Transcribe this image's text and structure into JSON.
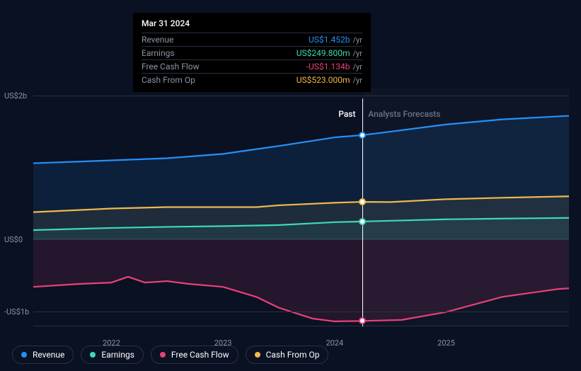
{
  "background_color": "#0a1122",
  "tooltip": {
    "date": "Mar 31 2024",
    "rows": [
      {
        "label": "Revenue",
        "value": "US$1.452b",
        "unit": "/yr",
        "color": "#2590f7"
      },
      {
        "label": "Earnings",
        "value": "US$249.800m",
        "unit": "/yr",
        "color": "#3fd9b6"
      },
      {
        "label": "Free Cash Flow",
        "value": "-US$1.134b",
        "unit": "/yr",
        "color": "#e8417a"
      },
      {
        "label": "Cash From Op",
        "value": "US$523.000m",
        "unit": "/yr",
        "color": "#f0b94a"
      }
    ]
  },
  "sections": {
    "past": {
      "label": "Past",
      "color": "#ffffff"
    },
    "forecast": {
      "label": "Analysts Forecasts",
      "color": "#6b7486"
    }
  },
  "y_axis": {
    "labels": [
      {
        "text": "US$2b",
        "value": 2000
      },
      {
        "text": "US$0",
        "value": 0
      },
      {
        "text": "-US$1b",
        "value": -1000
      }
    ],
    "min": -1200,
    "max": 2100,
    "grid_color": "#2a3142"
  },
  "x_axis": {
    "labels": [
      "2022",
      "2023",
      "2024",
      "2025"
    ],
    "min": 2021.3,
    "max": 2026.1,
    "cursor": 2024.25
  },
  "past_end": 2024.25,
  "series": [
    {
      "name": "Revenue",
      "color": "#2590f7",
      "fill_opacity": 0.12,
      "fill_to": 0,
      "points": [
        [
          2021.3,
          1060
        ],
        [
          2022.0,
          1100
        ],
        [
          2022.5,
          1130
        ],
        [
          2023.0,
          1190
        ],
        [
          2023.5,
          1300
        ],
        [
          2024.0,
          1420
        ],
        [
          2024.25,
          1452
        ],
        [
          2024.5,
          1500
        ],
        [
          2025.0,
          1600
        ],
        [
          2025.5,
          1670
        ],
        [
          2026.1,
          1720
        ]
      ]
    },
    {
      "name": "Earnings",
      "color": "#3fd9b6",
      "fill_opacity": 0.08,
      "fill_to": 0,
      "points": [
        [
          2021.3,
          130
        ],
        [
          2022.0,
          160
        ],
        [
          2022.5,
          175
        ],
        [
          2023.0,
          185
        ],
        [
          2023.5,
          200
        ],
        [
          2024.0,
          240
        ],
        [
          2024.25,
          250
        ],
        [
          2024.5,
          260
        ],
        [
          2025.0,
          280
        ],
        [
          2025.5,
          290
        ],
        [
          2026.1,
          300
        ]
      ]
    },
    {
      "name": "Free Cash Flow",
      "color": "#e8417a",
      "fill_opacity": 0.12,
      "fill_to": 0,
      "points": [
        [
          2021.3,
          -660
        ],
        [
          2021.7,
          -620
        ],
        [
          2022.0,
          -600
        ],
        [
          2022.15,
          -520
        ],
        [
          2022.3,
          -600
        ],
        [
          2022.5,
          -580
        ],
        [
          2022.7,
          -620
        ],
        [
          2023.0,
          -660
        ],
        [
          2023.3,
          -800
        ],
        [
          2023.5,
          -950
        ],
        [
          2023.8,
          -1100
        ],
        [
          2024.0,
          -1140
        ],
        [
          2024.25,
          -1134
        ],
        [
          2024.6,
          -1120
        ],
        [
          2025.0,
          -1010
        ],
        [
          2025.5,
          -800
        ],
        [
          2026.0,
          -690
        ],
        [
          2026.1,
          -680
        ]
      ]
    },
    {
      "name": "Cash From Op",
      "color": "#f0b94a",
      "fill_opacity": 0.08,
      "fill_to": 0,
      "points": [
        [
          2021.3,
          380
        ],
        [
          2022.0,
          430
        ],
        [
          2022.5,
          450
        ],
        [
          2023.0,
          450
        ],
        [
          2023.3,
          450
        ],
        [
          2023.5,
          475
        ],
        [
          2024.0,
          510
        ],
        [
          2024.25,
          523
        ],
        [
          2024.5,
          520
        ],
        [
          2025.0,
          560
        ],
        [
          2025.5,
          580
        ],
        [
          2026.1,
          600
        ]
      ]
    }
  ],
  "legend": [
    {
      "label": "Revenue",
      "color": "#2590f7"
    },
    {
      "label": "Earnings",
      "color": "#3fd9b6"
    },
    {
      "label": "Free Cash Flow",
      "color": "#e8417a"
    },
    {
      "label": "Cash From Op",
      "color": "#f0b94a"
    }
  ],
  "typography": {
    "font_size_small": 11,
    "font_size_base": 12
  },
  "line_width": 2.2
}
